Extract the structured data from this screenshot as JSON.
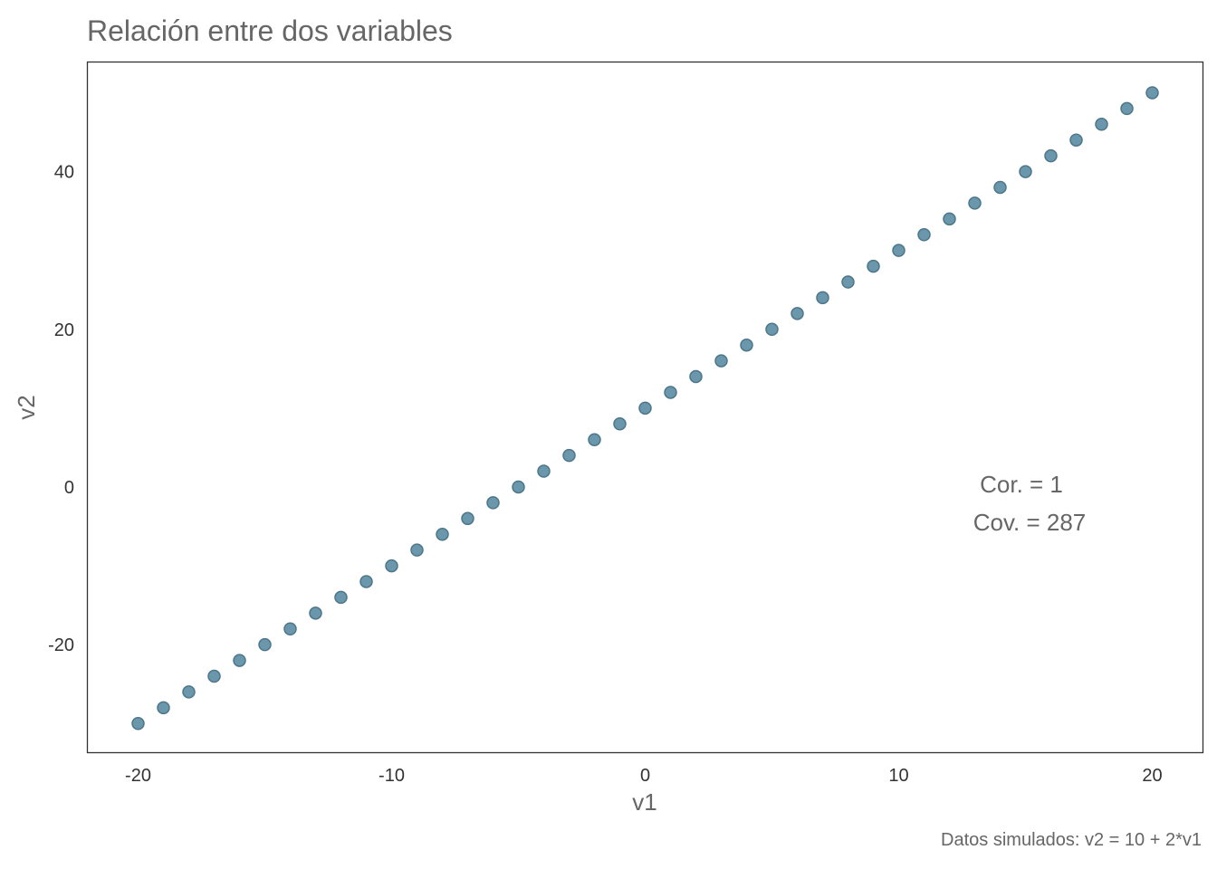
{
  "chart_data": {
    "type": "scatter",
    "title": "Relación entre dos variables",
    "xlabel": "v1",
    "ylabel": "v2",
    "xlim": [
      -22,
      22
    ],
    "ylim": [
      -33.7,
      53.9
    ],
    "xticks": [
      -20,
      -10,
      0,
      10,
      20
    ],
    "yticks": [
      -20,
      0,
      20,
      40
    ],
    "grid": false,
    "point_color": "#6a97ab",
    "point_stroke": "#4d7688",
    "x": [
      -20,
      -19,
      -18,
      -17,
      -16,
      -15,
      -14,
      -13,
      -12,
      -11,
      -10,
      -9,
      -8,
      -7,
      -6,
      -5,
      -4,
      -3,
      -2,
      -1,
      0,
      1,
      2,
      3,
      4,
      5,
      6,
      7,
      8,
      9,
      10,
      11,
      12,
      13,
      14,
      15,
      16,
      17,
      18,
      19,
      20
    ],
    "y": [
      -30,
      -28,
      -26,
      -24,
      -22,
      -20,
      -18,
      -16,
      -14,
      -12,
      -10,
      -8,
      -6,
      -4,
      -2,
      0,
      2,
      4,
      6,
      8,
      10,
      12,
      14,
      16,
      18,
      20,
      22,
      24,
      26,
      28,
      30,
      32,
      34,
      36,
      38,
      40,
      42,
      44,
      46,
      48,
      50
    ],
    "annotations": [
      {
        "text": "Cor. =  1"
      },
      {
        "text": "Cov. =  287"
      }
    ],
    "caption": "Datos simulados:  v2 = 10 + 2*v1"
  }
}
